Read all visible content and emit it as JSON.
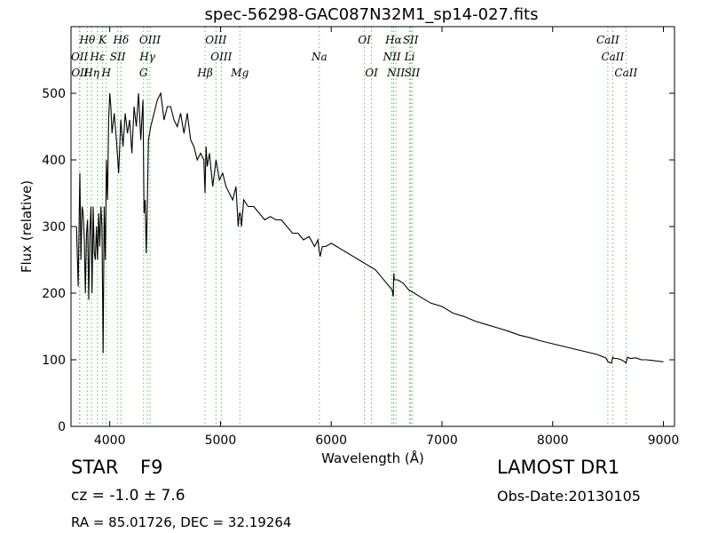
{
  "chart_data": {
    "type": "line",
    "title": "spec-56298-GAC087N32M1_sp14-027.fits",
    "xlabel": "Wavelength (Å)",
    "ylabel": "Flux (relative)",
    "xlim": [
      3650,
      9100
    ],
    "ylim": [
      0,
      600
    ],
    "xticks": [
      4000,
      5000,
      6000,
      7000,
      8000,
      9000
    ],
    "yticks": [
      0,
      100,
      200,
      300,
      400,
      500
    ],
    "grid": false,
    "series": [
      {
        "color": "#000000",
        "x": [
          3700,
          3715,
          3730,
          3740,
          3750,
          3760,
          3770,
          3780,
          3790,
          3800,
          3810,
          3820,
          3830,
          3840,
          3850,
          3860,
          3870,
          3880,
          3890,
          3900,
          3910,
          3920,
          3930,
          3940,
          3950,
          3960,
          3970,
          3980,
          3990,
          4000,
          4010,
          4020,
          4040,
          4060,
          4080,
          4100,
          4120,
          4140,
          4160,
          4180,
          4200,
          4220,
          4240,
          4260,
          4280,
          4300,
          4310,
          4320,
          4330,
          4340,
          4350,
          4370,
          4400,
          4430,
          4460,
          4490,
          4520,
          4550,
          4580,
          4610,
          4640,
          4670,
          4700,
          4730,
          4760,
          4790,
          4820,
          4850,
          4860,
          4870,
          4880,
          4900,
          4930,
          4960,
          4990,
          5020,
          5050,
          5080,
          5110,
          5140,
          5160,
          5170,
          5180,
          5190,
          5210,
          5250,
          5300,
          5350,
          5400,
          5450,
          5500,
          5550,
          5600,
          5650,
          5700,
          5750,
          5800,
          5850,
          5880,
          5890,
          5900,
          5920,
          5950,
          6000,
          6050,
          6100,
          6150,
          6200,
          6250,
          6300,
          6350,
          6400,
          6450,
          6500,
          6550,
          6560,
          6565,
          6570,
          6580,
          6600,
          6650,
          6700,
          6750,
          6800,
          6900,
          7000,
          7100,
          7200,
          7300,
          7400,
          7500,
          7600,
          7700,
          7800,
          7900,
          8000,
          8100,
          8200,
          8300,
          8400,
          8480,
          8500,
          8530,
          8542,
          8555,
          8580,
          8620,
          8650,
          8662,
          8675,
          8700,
          8750,
          8800,
          8850,
          8900,
          8950,
          9000
        ],
        "values": [
          300,
          210,
          380,
          250,
          330,
          320,
          280,
          200,
          290,
          310,
          190,
          290,
          330,
          200,
          330,
          260,
          250,
          300,
          250,
          320,
          270,
          330,
          300,
          110,
          330,
          250,
          400,
          340,
          460,
          500,
          480,
          440,
          470,
          430,
          380,
          460,
          420,
          470,
          440,
          460,
          410,
          480,
          450,
          500,
          430,
          490,
          320,
          340,
          260,
          340,
          430,
          450,
          470,
          490,
          500,
          460,
          480,
          480,
          460,
          450,
          470,
          440,
          470,
          430,
          420,
          400,
          410,
          400,
          350,
          420,
          390,
          410,
          360,
          400,
          370,
          380,
          360,
          350,
          340,
          360,
          300,
          320,
          320,
          300,
          340,
          330,
          330,
          320,
          310,
          315,
          310,
          310,
          300,
          290,
          290,
          280,
          285,
          270,
          280,
          265,
          255,
          270,
          270,
          275,
          270,
          265,
          260,
          255,
          250,
          245,
          240,
          235,
          225,
          215,
          205,
          195,
          230,
          220,
          220,
          220,
          215,
          205,
          200,
          195,
          185,
          180,
          170,
          165,
          158,
          153,
          148,
          143,
          137,
          133,
          128,
          124,
          120,
          116,
          112,
          108,
          103,
          97,
          95,
          104,
          102,
          102,
          100,
          97,
          95,
          104,
          102,
          103,
          100,
          100,
          99,
          98,
          97
        ]
      }
    ],
    "line_markers": [
      {
        "label": "Hθ",
        "x": 3797,
        "row": 1
      },
      {
        "label": "K",
        "x": 3934,
        "row": 1
      },
      {
        "label": "Hδ",
        "x": 4102,
        "row": 1
      },
      {
        "label": "OIII",
        "x": 4363,
        "row": 1
      },
      {
        "label": "OIII",
        "x": 4959,
        "row": 1
      },
      {
        "label": "OI",
        "x": 6300,
        "row": 1
      },
      {
        "label": "Hα",
        "x": 6563,
        "row": 1
      },
      {
        "label": "SII",
        "x": 6717,
        "row": 1
      },
      {
        "label": "CaII",
        "x": 8498,
        "row": 1
      },
      {
        "label": "OII",
        "x": 3727,
        "row": 2
      },
      {
        "label": "Hε",
        "x": 3889,
        "row": 2
      },
      {
        "label": "SII",
        "x": 4072,
        "row": 2
      },
      {
        "label": "Hγ",
        "x": 4340,
        "row": 2
      },
      {
        "label": "OIII",
        "x": 5007,
        "row": 2
      },
      {
        "label": "Na",
        "x": 5893,
        "row": 2
      },
      {
        "label": "NII",
        "x": 6548,
        "row": 2
      },
      {
        "label": "Li",
        "x": 6708,
        "row": 2
      },
      {
        "label": "CaII",
        "x": 8542,
        "row": 2
      },
      {
        "label": "OII",
        "x": 3730,
        "row": 3
      },
      {
        "label": "Hη",
        "x": 3835,
        "row": 3
      },
      {
        "label": "H",
        "x": 3968,
        "row": 3
      },
      {
        "label": "G",
        "x": 4305,
        "row": 3
      },
      {
        "label": "Hβ",
        "x": 4861,
        "row": 3
      },
      {
        "label": "Mg",
        "x": 5175,
        "row": 3
      },
      {
        "label": "OI",
        "x": 6364,
        "row": 3
      },
      {
        "label": "NII",
        "x": 6584,
        "row": 3
      },
      {
        "label": "SII",
        "x": 6731,
        "row": 3
      },
      {
        "label": "CaII",
        "x": 8662,
        "row": 3
      }
    ],
    "marker_color": "#5bbf5b"
  },
  "info": {
    "obj_class": "STAR",
    "subclass": "F9",
    "survey": "LAMOST DR1",
    "redshift": "cz = -1.0  ± 7.6",
    "obs_date": "Obs-Date:20130105",
    "coords": "RA = 85.01726, DEC = 32.19264"
  }
}
